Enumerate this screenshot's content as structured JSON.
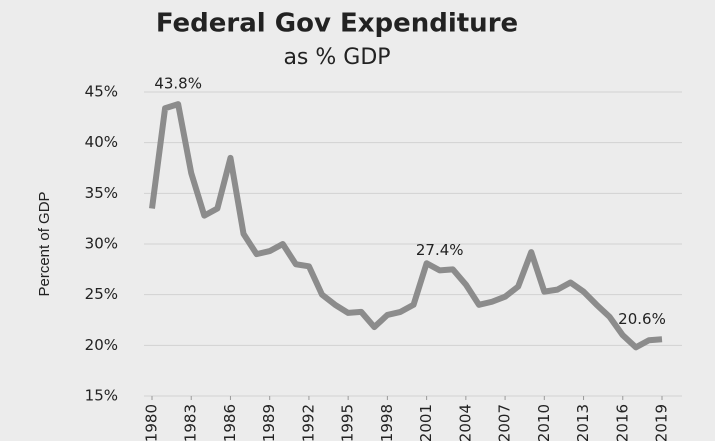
{
  "chart_data": {
    "type": "line",
    "title": "Federal Gov Expenditure",
    "subtitle": "as % GDP",
    "ylabel": "Percent of GDP",
    "x": [
      1980,
      1981,
      1982,
      1983,
      1984,
      1985,
      1986,
      1987,
      1988,
      1989,
      1990,
      1991,
      1992,
      1993,
      1994,
      1995,
      1996,
      1997,
      1998,
      1999,
      2000,
      2001,
      2002,
      2003,
      2004,
      2005,
      2006,
      2007,
      2008,
      2009,
      2010,
      2011,
      2012,
      2013,
      2014,
      2015,
      2016,
      2017,
      2018,
      2019
    ],
    "series": [
      {
        "color": "#8c8c8c",
        "values": [
          33.5,
          43.4,
          43.8,
          37,
          32.8,
          33.5,
          38.5,
          31,
          29,
          29.3,
          30,
          28,
          27.8,
          25,
          24,
          23.2,
          23.3,
          21.8,
          23,
          23.3,
          24,
          28.1,
          27.4,
          27.5,
          26,
          24,
          24.3,
          24.8,
          25.8,
          29.2,
          25.3,
          25.5,
          26.2,
          25.3,
          24,
          22.8,
          21,
          19.8,
          20.5,
          20.6
        ],
        "value_labels": [
          null,
          null,
          "43.8%",
          null,
          null,
          null,
          null,
          null,
          null,
          null,
          null,
          null,
          null,
          null,
          null,
          null,
          null,
          null,
          null,
          null,
          null,
          null,
          "27.4%",
          null,
          null,
          null,
          null,
          null,
          null,
          null,
          null,
          null,
          null,
          null,
          null,
          null,
          null,
          null,
          null,
          "20.6%"
        ]
      }
    ],
    "xlim": [
      1980,
      2019
    ],
    "xticks": [
      1980,
      1983,
      1986,
      1989,
      1992,
      1995,
      1998,
      2001,
      2004,
      2007,
      2010,
      2013,
      2016,
      2019
    ],
    "ylim": [
      15,
      45
    ],
    "yticks": [
      {
        "value": 15,
        "label": "15%"
      },
      {
        "value": 20,
        "label": "20%"
      },
      {
        "value": 25,
        "label": "25%"
      },
      {
        "value": 30,
        "label": "30%"
      },
      {
        "value": 35,
        "label": "35%"
      },
      {
        "value": 40,
        "label": "40%"
      },
      {
        "value": 45,
        "label": "45%"
      }
    ],
    "grid": true
  }
}
